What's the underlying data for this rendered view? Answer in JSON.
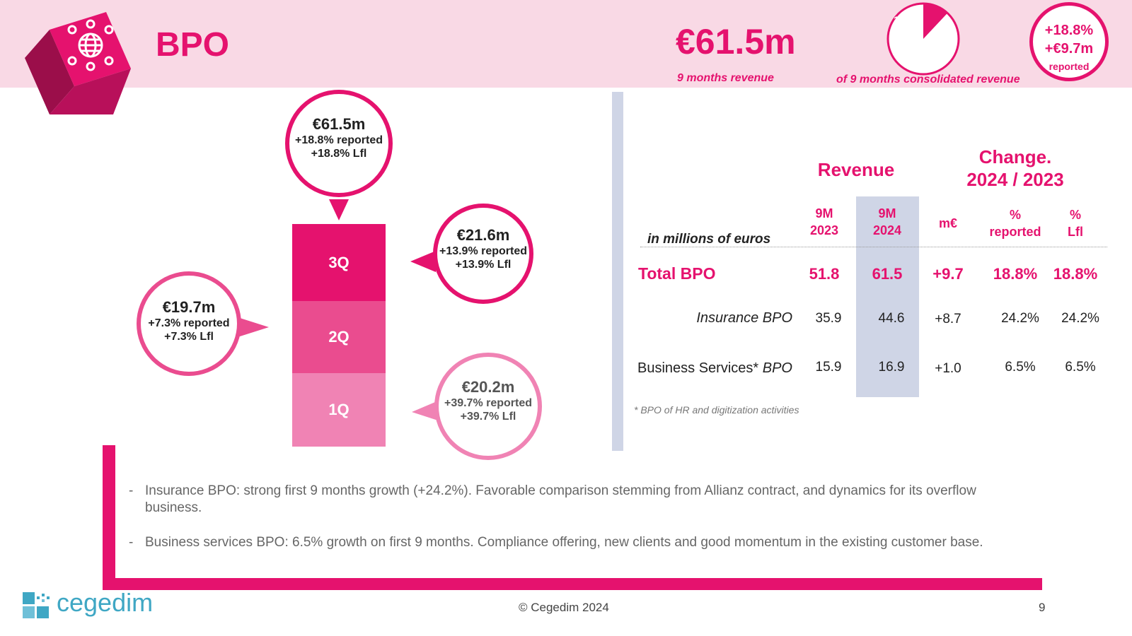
{
  "header": {
    "title": "BPO",
    "kpi_value": "€61.5m",
    "kpi_caption": "9 months revenue",
    "share_percent_label": "12%",
    "share_fraction": 0.12,
    "share_caption": "of 9 months consolidated revenue",
    "badge_line1": "+18.8%",
    "badge_line2": "+€9.7m",
    "badge_line3": "reported"
  },
  "colors": {
    "accent": "#e5126e",
    "q3": "#e5126e",
    "q2": "#ea4c8f",
    "q1": "#f083b4",
    "header_band": "#f9d9e5",
    "highlight": "#cfd5e6"
  },
  "quarters": {
    "q3": {
      "label": "3Q",
      "value": "€21.6m",
      "reported": "+13.9% reported",
      "lfl": "+13.9% Lfl"
    },
    "q2": {
      "label": "2Q",
      "value": "€19.7m",
      "reported": "+7.3% reported",
      "lfl": "+7.3% Lfl"
    },
    "q1": {
      "label": "1Q",
      "value": "€20.2m",
      "reported": "+39.7% reported",
      "lfl": "+39.7% Lfl"
    },
    "total": {
      "value": "€61.5m",
      "reported": "+18.8% reported",
      "lfl": "+18.8% Lfl"
    }
  },
  "table": {
    "revenue_header": "Revenue",
    "change_header_line1": "Change.",
    "change_header_line2": "2024 / 2023",
    "units_label": "in millions of euros",
    "col_9m2023_line1": "9M",
    "col_9m2023_line2": "2023",
    "col_9m2024_line1": "9M",
    "col_9m2024_line2": "2024",
    "col_meur": "m€",
    "col_reported_line1": "%",
    "col_reported_line2": "reported",
    "col_lfl_line1": "%",
    "col_lfl_line2": "Lfl",
    "rows": [
      {
        "label": "Total BPO",
        "y2023": "51.8",
        "y2024": "61.5",
        "meur": "+9.7",
        "reported": "18.8%",
        "lfl": "18.8%"
      },
      {
        "label": "Insurance BPO",
        "y2023": "35.9",
        "y2024": "44.6",
        "meur": "+8.7",
        "reported": "24.2%",
        "lfl": "24.2%"
      },
      {
        "label_normal": "Business Services*",
        "label_italic": "BPO",
        "y2023": "15.9",
        "y2024": "16.9",
        "meur": "+1.0",
        "reported": "6.5%",
        "lfl": "6.5%"
      }
    ],
    "footnote": "* BPO of HR and digitization activities"
  },
  "bullets": {
    "b1": "Insurance BPO: strong first 9 months growth (+24.2%). Favorable comparison stemming from Allianz contract, and dynamics for its overflow business.",
    "b2": "Business services BPO: 6.5% growth on first 9 months. Compliance offering, new clients and good momentum in the existing customer base.",
    "dash": "-"
  },
  "footer": {
    "logo_text": "cegedim",
    "copyright": "© Cegedim 2024",
    "page_number": "9"
  }
}
